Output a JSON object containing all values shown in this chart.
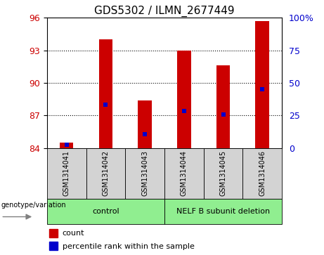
{
  "title": "GDS5302 / ILMN_2677449",
  "samples": [
    "GSM1314041",
    "GSM1314042",
    "GSM1314043",
    "GSM1314044",
    "GSM1314045",
    "GSM1314046"
  ],
  "count_values": [
    84.5,
    94.0,
    88.4,
    93.0,
    91.6,
    95.7
  ],
  "percentile_values": [
    2.5,
    33.0,
    10.5,
    28.5,
    25.5,
    45.0
  ],
  "ylim_left": [
    84,
    96
  ],
  "ylim_right": [
    0,
    100
  ],
  "yticks_left": [
    84,
    87,
    90,
    93,
    96
  ],
  "yticks_right": [
    0,
    25,
    50,
    75,
    100
  ],
  "ytick_labels_right": [
    "0",
    "25",
    "50",
    "75",
    "100%"
  ],
  "group_bg_color": "#d3d3d3",
  "group_label_bg": "#90EE90",
  "bar_color": "#cc0000",
  "percentile_color": "#0000cc",
  "bar_width": 0.35,
  "genotype_label": "genotype/variation",
  "legend_count": "count",
  "legend_percentile": "percentile rank within the sample",
  "left_ytick_color": "#cc0000",
  "right_ytick_color": "#0000cc",
  "grid_ticks": [
    87,
    90,
    93
  ]
}
